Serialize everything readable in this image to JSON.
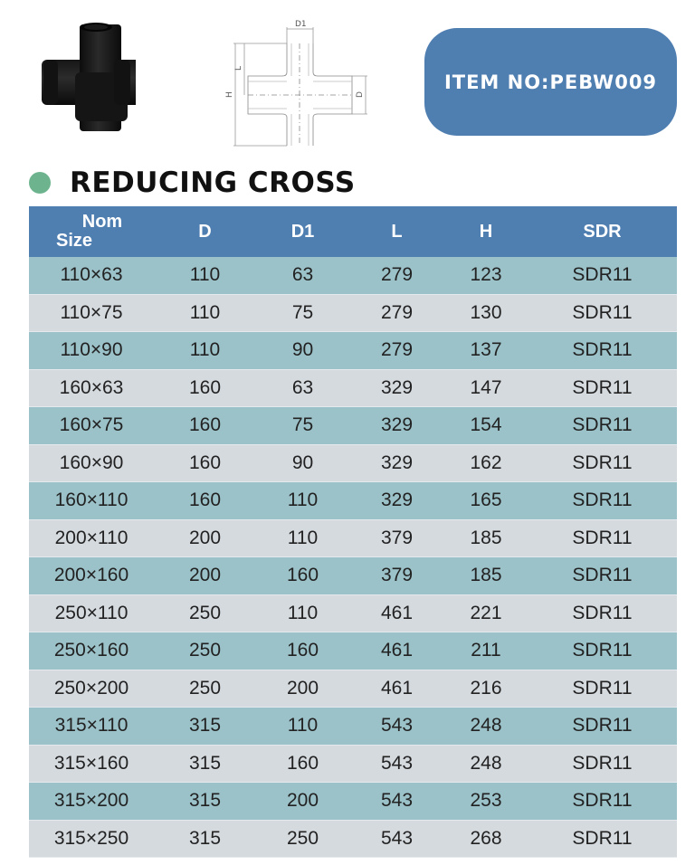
{
  "header": {
    "item_badge": "ITEM NO:PEBW009",
    "drawing_labels": {
      "d1": "D1",
      "l": "L",
      "h": "H",
      "d": "D"
    },
    "icons": [
      "product-photo",
      "technical-drawing"
    ]
  },
  "section": {
    "title": "REDUCING CROSS",
    "bullet_color": "#6db48e"
  },
  "colors": {
    "header_bg": "#4f7eb1",
    "row_odd": "#9bc2c9",
    "row_even": "#d5dadf"
  },
  "table": {
    "headers": {
      "nom_line1": "Nom",
      "nom_line2": "Size",
      "d": "D",
      "d1": "D1",
      "l": "L",
      "h": "H",
      "sdr": "SDR"
    },
    "rows": [
      {
        "nom": "110×63",
        "d": "110",
        "d1": "63",
        "l": "279",
        "h": "123",
        "sdr": "SDR11"
      },
      {
        "nom": "110×75",
        "d": "110",
        "d1": "75",
        "l": "279",
        "h": "130",
        "sdr": "SDR11"
      },
      {
        "nom": "110×90",
        "d": "110",
        "d1": "90",
        "l": "279",
        "h": "137",
        "sdr": "SDR11"
      },
      {
        "nom": "160×63",
        "d": "160",
        "d1": "63",
        "l": "329",
        "h": "147",
        "sdr": "SDR11"
      },
      {
        "nom": "160×75",
        "d": "160",
        "d1": "75",
        "l": "329",
        "h": "154",
        "sdr": "SDR11"
      },
      {
        "nom": "160×90",
        "d": "160",
        "d1": "90",
        "l": "329",
        "h": "162",
        "sdr": "SDR11"
      },
      {
        "nom": "160×110",
        "d": "160",
        "d1": "110",
        "l": "329",
        "h": "165",
        "sdr": "SDR11"
      },
      {
        "nom": "200×110",
        "d": "200",
        "d1": "110",
        "l": "379",
        "h": "185",
        "sdr": "SDR11"
      },
      {
        "nom": "200×160",
        "d": "200",
        "d1": "160",
        "l": "379",
        "h": "185",
        "sdr": "SDR11"
      },
      {
        "nom": "250×110",
        "d": "250",
        "d1": "110",
        "l": "461",
        "h": "221",
        "sdr": "SDR11"
      },
      {
        "nom": "250×160",
        "d": "250",
        "d1": "160",
        "l": "461",
        "h": "211",
        "sdr": "SDR11"
      },
      {
        "nom": "250×200",
        "d": "250",
        "d1": "200",
        "l": "461",
        "h": "216",
        "sdr": "SDR11"
      },
      {
        "nom": "315×110",
        "d": "315",
        "d1": "110",
        "l": "543",
        "h": "248",
        "sdr": "SDR11"
      },
      {
        "nom": "315×160",
        "d": "315",
        "d1": "160",
        "l": "543",
        "h": "248",
        "sdr": "SDR11"
      },
      {
        "nom": "315×200",
        "d": "315",
        "d1": "200",
        "l": "543",
        "h": "253",
        "sdr": "SDR11"
      },
      {
        "nom": "315×250",
        "d": "315",
        "d1": "250",
        "l": "543",
        "h": "268",
        "sdr": "SDR11"
      }
    ]
  }
}
